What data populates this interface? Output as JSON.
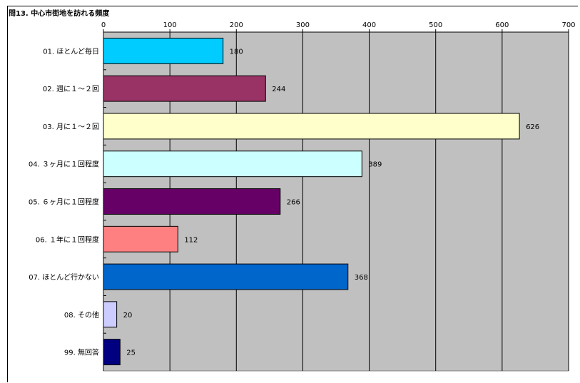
{
  "chart_data": {
    "type": "bar",
    "orientation": "horizontal",
    "title": "問13. 中心市街地を訪れる頻度",
    "categories": [
      "01. ほとんど毎日",
      "02. 週に１～２回",
      "03. 月に１～２回",
      "04. ３ヶ月に１回程度",
      "05. ６ヶ月に１回程度",
      "06. １年に１回程度",
      "07. ほとんど行かない",
      "08. その他",
      "99. 無回答"
    ],
    "values": [
      180,
      244,
      626,
      389,
      266,
      112,
      368,
      20,
      25
    ],
    "colors": [
      "#00ccff",
      "#993366",
      "#ffffcc",
      "#ccffff",
      "#660066",
      "#ff8080",
      "#0066cc",
      "#ccccff",
      "#000080"
    ],
    "xlim": [
      0,
      700
    ],
    "xticks": [
      0,
      100,
      200,
      300,
      400,
      500,
      600,
      700
    ],
    "xaxis_position": "top",
    "grid": true,
    "plot_background": "#c0c0c0",
    "legend": "none"
  }
}
